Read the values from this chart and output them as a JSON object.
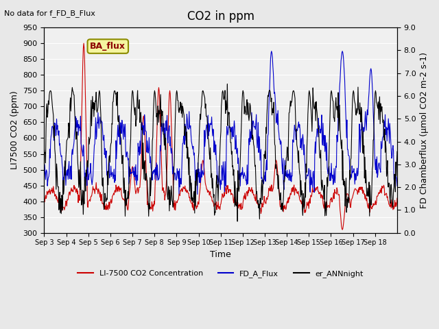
{
  "title": "CO2 in ppm",
  "top_left_text": "No data for f_FD_B_Flux",
  "annotation_box": "BA_flux",
  "ylabel_left": "LI7500 CO2 (ppm)",
  "ylabel_right": "FD Chamberflux (μmol CO2 m-2 s-1)",
  "xlabel": "Time",
  "ylim_left": [
    300,
    950
  ],
  "ylim_right": [
    0.0,
    9.0
  ],
  "yticks_left": [
    300,
    350,
    400,
    450,
    500,
    550,
    600,
    650,
    700,
    750,
    800,
    850,
    900,
    950
  ],
  "yticks_right": [
    0.0,
    1.0,
    2.0,
    3.0,
    4.0,
    5.0,
    6.0,
    7.0,
    8.0,
    9.0
  ],
  "xtick_labels": [
    "Sep 3",
    "Sep 4",
    "Sep 5",
    "Sep 6",
    "Sep 7",
    "Sep 8",
    "Sep 9",
    "Sep 10",
    "Sep 11",
    "Sep 12",
    "Sep 13",
    "Sep 14",
    "Sep 15",
    "Sep 16",
    "Sep 17",
    "Sep 18"
  ],
  "n_days": 16,
  "bg_color": "#e8e8e8",
  "plot_bg_color": "#f0f0f0",
  "line_red": "#cc0000",
  "line_blue": "#0000cc",
  "line_black": "#000000",
  "legend_labels": [
    "LI-7500 CO2 Concentration",
    "FD_A_Flux",
    "er_ANNnight"
  ],
  "legend_colors": [
    "#cc0000",
    "#0000cc",
    "#000000"
  ]
}
